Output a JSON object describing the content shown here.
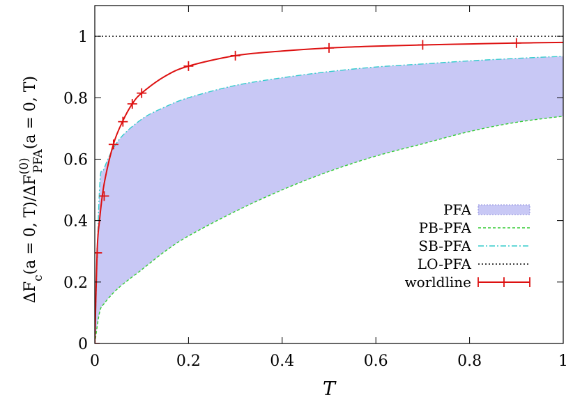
{
  "chart_data": {
    "type": "line",
    "title": "",
    "xlabel": "T",
    "ylabel": "ΔFc(a = 0, T)/ΔF(0)PFA(a = 0, T)",
    "ylabel_parts": {
      "head": "ΔF",
      "c_sub": "c",
      "mid": "(a = 0, T)/ΔF",
      "sup": "(0)",
      "pfa_sub": "PFA",
      "tail": "(a = 0, T)"
    },
    "xlim": [
      0,
      1
    ],
    "ylim": [
      0,
      1.1
    ],
    "x_ticks": [
      0,
      0.2,
      0.4,
      0.6,
      0.8,
      1
    ],
    "x_tick_labels": [
      "0",
      "0.2",
      "0.4",
      "0.6",
      "0.8",
      "1"
    ],
    "y_ticks": [
      0,
      0.2,
      0.4,
      0.6,
      0.8,
      1
    ],
    "y_tick_labels": [
      "0",
      "0.2",
      "0.4",
      "0.6",
      "0.8",
      "1"
    ],
    "grid": false,
    "legend_position": "right",
    "series": [
      {
        "name": "PFA",
        "kind": "band",
        "color": "#c8c8f5",
        "edge_color": "#8c8cdc",
        "x": [
          0,
          0.01,
          0.02,
          0.05,
          0.1,
          0.15,
          0.2,
          0.3,
          0.4,
          0.5,
          0.6,
          0.7,
          0.8,
          0.9,
          1.0
        ],
        "lower": [
          0,
          0.1,
          0.13,
          0.18,
          0.24,
          0.3,
          0.35,
          0.43,
          0.5,
          0.56,
          0.61,
          0.65,
          0.69,
          0.72,
          0.74
        ],
        "upper": [
          0,
          0.5,
          0.57,
          0.66,
          0.73,
          0.77,
          0.8,
          0.84,
          0.865,
          0.885,
          0.9,
          0.91,
          0.92,
          0.928,
          0.935
        ]
      },
      {
        "name": "PB-PFA",
        "kind": "line",
        "color": "#33cc33",
        "dash": "4,3",
        "x": [
          0,
          0.01,
          0.02,
          0.05,
          0.1,
          0.15,
          0.2,
          0.3,
          0.4,
          0.5,
          0.6,
          0.7,
          0.8,
          0.9,
          1.0
        ],
        "y": [
          0,
          0.1,
          0.13,
          0.18,
          0.24,
          0.3,
          0.35,
          0.43,
          0.5,
          0.56,
          0.61,
          0.65,
          0.69,
          0.72,
          0.74
        ]
      },
      {
        "name": "SB-PFA",
        "kind": "line",
        "color": "#33cccc",
        "dash": "8,3,2,3",
        "x": [
          0,
          0.01,
          0.02,
          0.05,
          0.1,
          0.15,
          0.2,
          0.3,
          0.4,
          0.5,
          0.6,
          0.7,
          0.8,
          0.9,
          1.0
        ],
        "y": [
          0,
          0.5,
          0.57,
          0.66,
          0.73,
          0.77,
          0.8,
          0.84,
          0.865,
          0.885,
          0.9,
          0.91,
          0.92,
          0.928,
          0.935
        ]
      },
      {
        "name": "LO-PFA",
        "kind": "line",
        "color": "#000000",
        "dash": "2,3",
        "x": [
          0,
          1
        ],
        "y": [
          1,
          1
        ]
      },
      {
        "name": "worldline",
        "kind": "line",
        "color": "#dd1111",
        "dash": "",
        "markers": true,
        "x": [
          0,
          0.005,
          0.01,
          0.02,
          0.04,
          0.06,
          0.08,
          0.1,
          0.15,
          0.2,
          0.3,
          0.4,
          0.5,
          0.6,
          0.7,
          0.8,
          0.9,
          1.0
        ],
        "y": [
          0,
          0.3,
          0.4,
          0.52,
          0.65,
          0.725,
          0.78,
          0.815,
          0.87,
          0.903,
          0.937,
          0.952,
          0.962,
          0.968,
          0.972,
          0.975,
          0.978,
          0.98
        ],
        "points_x": [
          0,
          0.005,
          0.02,
          0.04,
          0.06,
          0.08,
          0.1,
          0.2,
          0.3,
          0.5,
          0.7,
          0.9
        ],
        "points_y": [
          0,
          0.295,
          0.48,
          0.648,
          0.722,
          0.78,
          0.815,
          0.903,
          0.937,
          0.962,
          0.972,
          0.978
        ]
      }
    ]
  }
}
